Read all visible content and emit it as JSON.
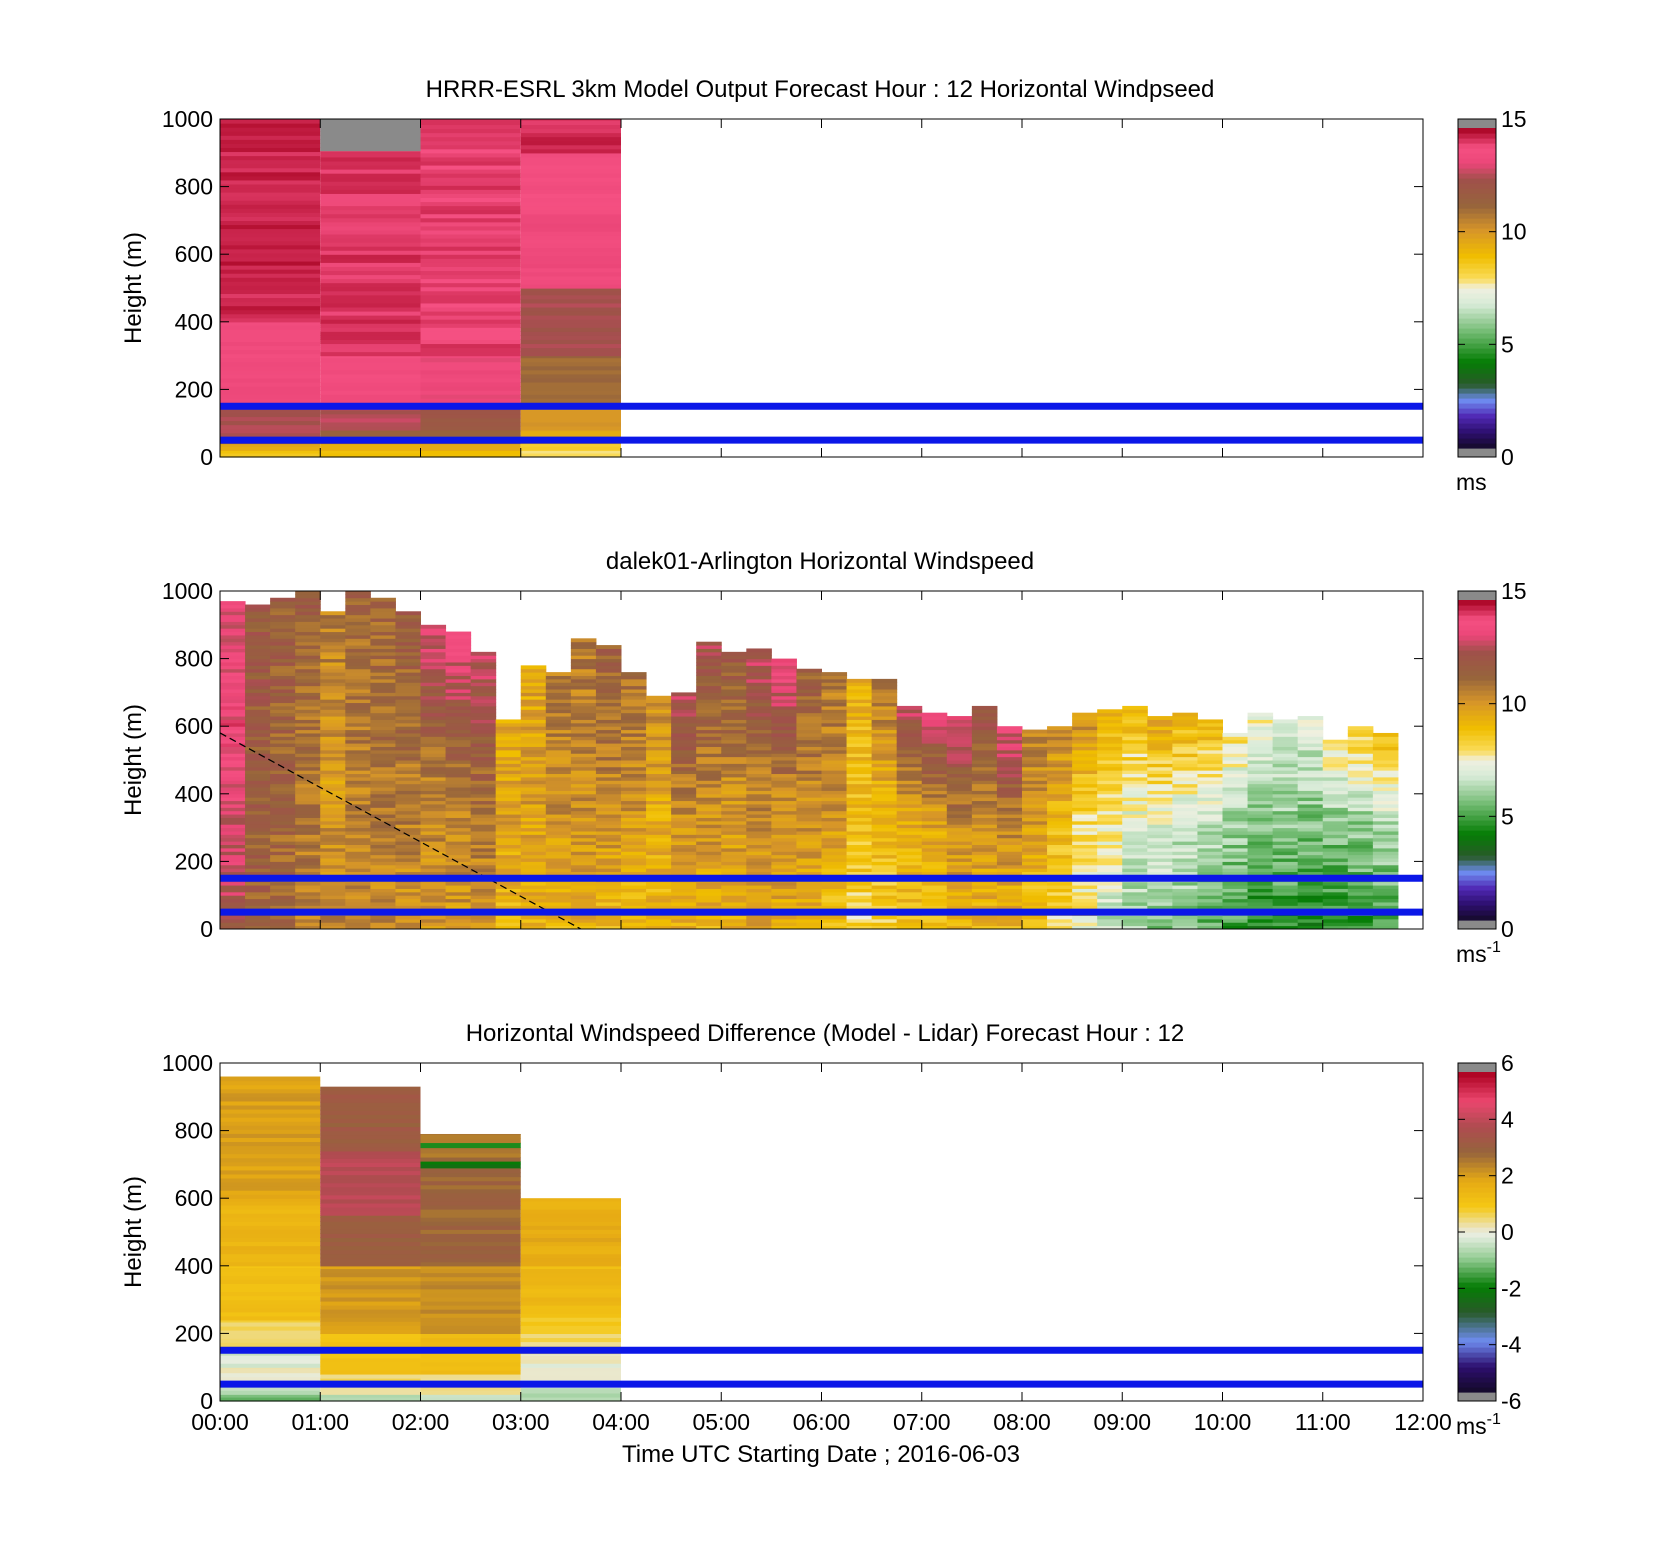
{
  "figure": {
    "xlabel": "Time UTC  Starting Date ; 2016-06-03",
    "x_ticks": [
      "00:00",
      "01:00",
      "02:00",
      "03:00",
      "04:00",
      "05:00",
      "06:00",
      "07:00",
      "08:00",
      "09:00",
      "10:00",
      "11:00",
      "12:00"
    ],
    "y_ticks": [
      "0",
      "200",
      "400",
      "600",
      "800",
      "1000"
    ],
    "ylabel": "Height (m)",
    "reference_lines_color": "#0b17e8"
  },
  "chart_data": [
    {
      "type": "heatmap",
      "title": "HRRR-ESRL 3km Model Output   Forecast Hour : 12 Horizontal Windpseed",
      "ylabel": "Height (m)",
      "xlim": [
        0,
        12
      ],
      "ylim": [
        0,
        1000
      ],
      "colorbar": {
        "ticks": [
          "0",
          "5",
          "10",
          "15"
        ],
        "range": [
          0,
          15
        ],
        "unit": "ms",
        "unit_sup": "",
        "palette": "speed"
      },
      "reference_heights_m": [
        50,
        150
      ],
      "columns": [
        {
          "t0": 0,
          "t1": 1,
          "top": 1000,
          "missing_above": null,
          "bins": [
            [
              0,
              20,
              8.8
            ],
            [
              20,
              40,
              9.6
            ],
            [
              40,
              60,
              11.8
            ],
            [
              60,
              150,
              12.8
            ],
            [
              150,
              400,
              13.6
            ],
            [
              400,
              1000,
              14.6
            ]
          ]
        },
        {
          "t0": 1,
          "t1": 2,
          "top": 1000,
          "missing_above": 905,
          "bins": [
            [
              0,
              20,
              8.8
            ],
            [
              20,
              40,
              9.6
            ],
            [
              40,
              80,
              11.5
            ],
            [
              80,
              150,
              12.8
            ],
            [
              150,
              300,
              13.8
            ],
            [
              300,
              905,
              14.4
            ]
          ]
        },
        {
          "t0": 2,
          "t1": 3,
          "top": 1000,
          "missing_above": null,
          "bins": [
            [
              0,
              20,
              8.8
            ],
            [
              20,
              40,
              9.6
            ],
            [
              40,
              80,
              11.5
            ],
            [
              80,
              150,
              12.2
            ],
            [
              150,
              300,
              13.5
            ],
            [
              300,
              1000,
              14.3
            ]
          ]
        },
        {
          "t0": 3,
          "t1": 4,
          "top": 1000,
          "missing_above": null,
          "bins": [
            [
              0,
              20,
              7.8
            ],
            [
              20,
              40,
              8.6
            ],
            [
              40,
              80,
              9.6
            ],
            [
              80,
              150,
              10.2
            ],
            [
              150,
              300,
              11.3
            ],
            [
              300,
              500,
              12.6
            ],
            [
              500,
              720,
              13.6
            ],
            [
              720,
              900,
              13.9
            ],
            [
              900,
              1000,
              14.5
            ]
          ]
        }
      ]
    },
    {
      "type": "heatmap",
      "title": "dalek01-Arlington  Horizontal Windspeed",
      "ylabel": "Height (m)",
      "xlim": [
        0,
        12
      ],
      "ylim": [
        0,
        1000
      ],
      "colorbar": {
        "ticks": [
          "0",
          "5",
          "10",
          "15"
        ],
        "range": [
          0,
          15
        ],
        "unit": "ms",
        "unit_sup": "-1",
        "palette": "speed"
      },
      "reference_heights_m": [
        50,
        150
      ],
      "diagonal_line": {
        "start": [
          0,
          580
        ],
        "end": [
          3.6,
          0
        ]
      },
      "column_width_h": 0.25,
      "columns": [
        {
          "t": 0.0,
          "top": 970,
          "low": 12.5,
          "mid": 13.8,
          "high": 13.5
        },
        {
          "t": 0.25,
          "top": 960,
          "low": 11.5,
          "mid": 11.8,
          "high": 12.0
        },
        {
          "t": 0.5,
          "top": 980,
          "low": 11.2,
          "mid": 11.5,
          "high": 11.8
        },
        {
          "t": 0.75,
          "top": 1000,
          "low": 10.8,
          "mid": 11.0,
          "high": 11.8
        },
        {
          "t": 1.0,
          "top": 940,
          "low": 10.5,
          "mid": 10.0,
          "high": 10.8
        },
        {
          "t": 1.25,
          "top": 1000,
          "low": 10.5,
          "mid": 10.8,
          "high": 11.5
        },
        {
          "t": 1.5,
          "top": 980,
          "low": 10.4,
          "mid": 11.0,
          "high": 11.5
        },
        {
          "t": 1.75,
          "top": 940,
          "low": 10.2,
          "mid": 11.0,
          "high": 11.8
        },
        {
          "t": 2.0,
          "top": 900,
          "low": 10.0,
          "mid": 10.8,
          "high": 13.5
        },
        {
          "t": 2.25,
          "top": 880,
          "low": 10.0,
          "mid": 11.0,
          "high": 13.8
        },
        {
          "t": 2.5,
          "top": 820,
          "low": 10.0,
          "mid": 11.3,
          "high": 13.0
        },
        {
          "t": 2.75,
          "top": 620,
          "low": 9.2,
          "mid": 9.8,
          "high": 9.6
        },
        {
          "t": 3.0,
          "top": 780,
          "low": 9.2,
          "mid": 10.0,
          "high": 9.6
        },
        {
          "t": 3.25,
          "top": 760,
          "low": 9.3,
          "mid": 10.4,
          "high": 10.8
        },
        {
          "t": 3.5,
          "top": 860,
          "low": 9.4,
          "mid": 10.5,
          "high": 11.0
        },
        {
          "t": 3.75,
          "top": 840,
          "low": 9.2,
          "mid": 10.6,
          "high": 11.8
        },
        {
          "t": 4.0,
          "top": 760,
          "low": 9.0,
          "mid": 10.3,
          "high": 11.2
        },
        {
          "t": 4.25,
          "top": 690,
          "low": 9.2,
          "mid": 9.6,
          "high": 10.6
        },
        {
          "t": 4.5,
          "top": 700,
          "low": 9.4,
          "mid": 10.5,
          "high": 12.8
        },
        {
          "t": 4.75,
          "top": 850,
          "low": 9.3,
          "mid": 10.6,
          "high": 12.5
        },
        {
          "t": 5.0,
          "top": 820,
          "low": 9.4,
          "mid": 10.4,
          "high": 12.0
        },
        {
          "t": 5.25,
          "top": 830,
          "low": 9.6,
          "mid": 10.8,
          "high": 13.0
        },
        {
          "t": 5.5,
          "top": 800,
          "low": 9.6,
          "mid": 10.6,
          "high": 13.8
        },
        {
          "t": 5.75,
          "top": 770,
          "low": 9.3,
          "mid": 10.5,
          "high": 11.8
        },
        {
          "t": 6.0,
          "top": 760,
          "low": 8.8,
          "mid": 10.4,
          "high": 11.0
        },
        {
          "t": 6.25,
          "top": 740,
          "low": 8.2,
          "mid": 9.0,
          "high": 9.4
        },
        {
          "t": 6.5,
          "top": 740,
          "low": 8.4,
          "mid": 9.4,
          "high": 11.0
        },
        {
          "t": 6.75,
          "top": 660,
          "low": 8.8,
          "mid": 9.6,
          "high": 13.0
        },
        {
          "t": 7.0,
          "top": 640,
          "low": 8.8,
          "mid": 9.8,
          "high": 13.5
        },
        {
          "t": 7.25,
          "top": 630,
          "low": 9.2,
          "mid": 10.6,
          "high": 13.8
        },
        {
          "t": 7.5,
          "top": 660,
          "low": 9.2,
          "mid": 10.4,
          "high": 12.5
        },
        {
          "t": 7.75,
          "top": 600,
          "low": 9.2,
          "mid": 10.5,
          "high": 13.8
        },
        {
          "t": 8.0,
          "top": 590,
          "low": 8.6,
          "mid": 10.0,
          "high": 10.8
        },
        {
          "t": 8.25,
          "top": 600,
          "low": 7.8,
          "mid": 9.2,
          "high": 10.5
        },
        {
          "t": 8.5,
          "top": 640,
          "low": 7.4,
          "mid": 8.2,
          "high": 10.5
        },
        {
          "t": 8.75,
          "top": 650,
          "low": 6.5,
          "mid": 7.8,
          "high": 9.6
        },
        {
          "t": 9.0,
          "top": 660,
          "low": 6.0,
          "mid": 7.2,
          "high": 9.2
        },
        {
          "t": 9.25,
          "top": 630,
          "low": 5.8,
          "mid": 7.0,
          "high": 9.8
        },
        {
          "t": 9.5,
          "top": 640,
          "low": 5.6,
          "mid": 6.8,
          "high": 9.6
        },
        {
          "t": 9.75,
          "top": 620,
          "low": 5.2,
          "mid": 6.4,
          "high": 9.4
        },
        {
          "t": 10.0,
          "top": 580,
          "low": 4.8,
          "mid": 6.0,
          "high": 8.0
        },
        {
          "t": 10.25,
          "top": 640,
          "low": 4.2,
          "mid": 5.8,
          "high": 7.4
        },
        {
          "t": 10.5,
          "top": 620,
          "low": 4.4,
          "mid": 5.9,
          "high": 7.0
        },
        {
          "t": 10.75,
          "top": 630,
          "low": 4.2,
          "mid": 5.6,
          "high": 7.2
        },
        {
          "t": 11.0,
          "top": 560,
          "low": 4.4,
          "mid": 5.6,
          "high": 7.8
        },
        {
          "t": 11.25,
          "top": 600,
          "low": 4.6,
          "mid": 5.8,
          "high": 8.6
        },
        {
          "t": 11.5,
          "top": 580,
          "low": 4.8,
          "mid": 6.2,
          "high": 9.0
        }
      ]
    },
    {
      "type": "heatmap",
      "title": "Horizontal Windspeed Difference (Model - Lidar) Forecast Hour : 12",
      "ylabel": "Height (m)",
      "xlim": [
        0,
        12
      ],
      "ylim": [
        0,
        1000
      ],
      "colorbar": {
        "ticks": [
          "-6",
          "-4",
          "-2",
          "0",
          "2",
          "4",
          "6"
        ],
        "range": [
          -6,
          6
        ],
        "unit": "ms",
        "unit_sup": "-1",
        "palette": "diff"
      },
      "reference_heights_m": [
        50,
        150
      ],
      "columns": [
        {
          "t0": 0,
          "t1": 1,
          "top": 960,
          "bins": [
            [
              0,
              20,
              -1.2
            ],
            [
              20,
              60,
              -0.6
            ],
            [
              60,
              100,
              0.0
            ],
            [
              100,
              150,
              -0.3
            ],
            [
              150,
              240,
              0.6
            ],
            [
              240,
              400,
              1.2
            ],
            [
              400,
              600,
              1.6
            ],
            [
              600,
              960,
              2.1
            ]
          ]
        },
        {
          "t0": 1,
          "t1": 2,
          "top": 930,
          "bins": [
            [
              0,
              20,
              -0.8
            ],
            [
              20,
              80,
              0.5
            ],
            [
              80,
              200,
              1.2
            ],
            [
              200,
              400,
              2.2
            ],
            [
              400,
              550,
              3.2
            ],
            [
              550,
              740,
              4.1
            ],
            [
              740,
              930,
              3.3
            ]
          ]
        },
        {
          "t0": 2,
          "t1": 3,
          "top": 790,
          "bins": [
            [
              0,
              20,
              -0.6
            ],
            [
              20,
              80,
              0.4
            ],
            [
              80,
              200,
              1.4
            ],
            [
              200,
              400,
              2.4
            ],
            [
              400,
              690,
              3.0
            ],
            [
              690,
              710,
              -2.2
            ],
            [
              710,
              750,
              2.8
            ],
            [
              750,
              765,
              -1.8
            ],
            [
              765,
              790,
              2.6
            ]
          ]
        },
        {
          "t0": 3,
          "t1": 4,
          "top": 600,
          "bins": [
            [
              0,
              40,
              -0.8
            ],
            [
              40,
              140,
              0.0
            ],
            [
              140,
              200,
              0.6
            ],
            [
              200,
              260,
              1.0
            ],
            [
              260,
              400,
              1.4
            ],
            [
              400,
              600,
              1.8
            ]
          ]
        }
      ]
    }
  ]
}
